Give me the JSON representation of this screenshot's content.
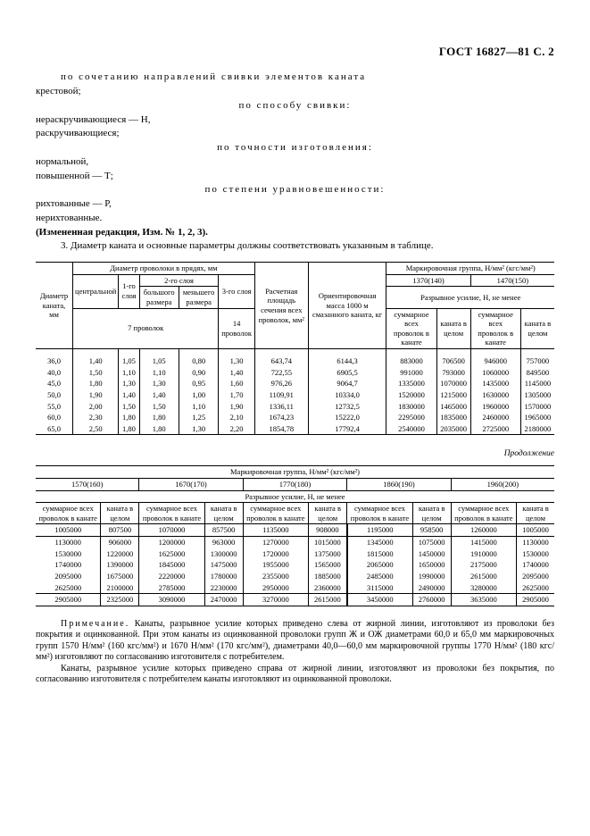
{
  "header": "ГОСТ 16827—81 С. 2",
  "text": {
    "line1": "по сочетанию направлений свивки элементов каната",
    "line2": "крестовой;",
    "line3": "по способу свивки:",
    "line4": "нераскручивающиеся — Н,",
    "line5": "раскручивающиеся;",
    "line6": "по точности изготовления:",
    "line7": "нормальной,",
    "line8": "повышенной — Т;",
    "line9": "по степени уравновешенности:",
    "line10": "рихтованные — Р,",
    "line11": "нерихтованные.",
    "line12": "(Измененная редакция, Изм. № 1, 2, 3).",
    "line13": "3. Диаметр каната и основные параметры должны соответствовать указанным в таблице."
  },
  "continuation": "Продолжение",
  "table1": {
    "headers": {
      "h1": "Диаметр каната, мм",
      "h2": "Диаметр проволоки в прядях, мм",
      "h3": "Расчетная площадь сечения всех проволок, мм²",
      "h4": "Ориентировочная масса 1000 м смазанного каната, кг",
      "h5": "Маркировочная группа, Н/мм² (кгс/мм²)",
      "s1": "центральной",
      "s2": "1-го слоя",
      "s3": "2-го слоя",
      "s4": "3-го слоя",
      "s5": "большого размера",
      "s6": "меньшего размера",
      "s7": "7 проволок",
      "s8": "14 проволок",
      "g1": "1370(140)",
      "g2": "1470(150)",
      "r1": "Разрывное усилие, Н, не менее",
      "c1": "суммарное всех проволок в канате",
      "c2": "каната в целом"
    },
    "rows": [
      [
        "36,0",
        "1,40",
        "1,05",
        "1,05",
        "0,80",
        "1,30",
        "643,74",
        "6144,3",
        "883000",
        "706500",
        "946000",
        "757000"
      ],
      [
        "40,0",
        "1,50",
        "1,10",
        "1,10",
        "0,90",
        "1,40",
        "722,55",
        "6905,5",
        "991000",
        "793000",
        "1060000",
        "849500"
      ],
      [
        "45,0",
        "1,80",
        "1,30",
        "1,30",
        "0,95",
        "1,60",
        "976,26",
        "9064,7",
        "1335000",
        "1070000",
        "1435000",
        "1145000"
      ],
      [
        "50,0",
        "1,90",
        "1,40",
        "1,40",
        "1,00",
        "1,70",
        "1109,91",
        "10334,0",
        "1520000",
        "1215000",
        "1630000",
        "1305000"
      ],
      [
        "55,0",
        "2,00",
        "1,50",
        "1,50",
        "1,10",
        "1,90",
        "1336,11",
        "12732,5",
        "1830000",
        "1465000",
        "1960000",
        "1570000"
      ],
      [
        "60,0",
        "2,30",
        "1,80",
        "1,80",
        "1,25",
        "2,10",
        "1674,23",
        "15222,0",
        "2295000",
        "1835000",
        "2460000",
        "1965000"
      ],
      [
        "65,0",
        "2,50",
        "1,80",
        "1,80",
        "1,30",
        "2,20",
        "1854,78",
        "17792,4",
        "2540000",
        "2035000",
        "2725000",
        "2180000"
      ]
    ]
  },
  "table2": {
    "headers": {
      "h1": "Маркировочная группа, Н/мм² (кгс/мм²)",
      "g1": "1570(160)",
      "g2": "1670(170)",
      "g3": "1770(180)",
      "g4": "1860(190)",
      "g5": "1960(200)",
      "r1": "Разрывное усилие, Н, не менее",
      "c1": "суммарное всех проволок в канате",
      "c2": "каната в целом"
    },
    "rows": [
      [
        "1005000",
        "807500",
        "1070000",
        "857500",
        "1135000",
        "908000",
        "1195000",
        "958500",
        "1260000",
        "1005000"
      ],
      [
        "1130000",
        "906000",
        "1200000",
        "963000",
        "1270000",
        "1015000",
        "1345000",
        "1075000",
        "1415000",
        "1130000"
      ],
      [
        "1530000",
        "1220000",
        "1625000",
        "1300000",
        "1720000",
        "1375000",
        "1815000",
        "1450000",
        "1910000",
        "1530000"
      ],
      [
        "1740000",
        "1390000",
        "1845000",
        "1475000",
        "1955000",
        "1565000",
        "2065000",
        "1650000",
        "2175000",
        "1740000"
      ],
      [
        "2095000",
        "1675000",
        "2220000",
        "1780000",
        "2355000",
        "1885000",
        "2485000",
        "1990000",
        "2615000",
        "2095000"
      ],
      [
        "2625000",
        "2100000",
        "2785000",
        "2230000",
        "2950000",
        "2360000",
        "3115000",
        "2490000",
        "3280000",
        "2625000"
      ],
      [
        "2905000",
        "2325000",
        "3090000",
        "2470000",
        "3270000",
        "2615000",
        "3450000",
        "2760000",
        "3635000",
        "2905000"
      ]
    ]
  },
  "note": {
    "label": "Примечание.",
    "p1": "Канаты, разрывное усилие которых приведено слева от жирной линии, изготовляют из проволоки без покрытия и оцинкованной. При этом канаты из оцинкованной проволоки групп Ж и ОЖ диаметрами 60,0 и 65,0 мм маркировочных групп 1570 Н/мм² (160 кгс/мм²) и 1670 Н/мм² (170 кгс/мм²), диаметрами 40,0—60,0 мм маркировочной группы 1770 Н/мм² (180 кгс/мм²) изготовляют по согласованию изготовителя с потребителем.",
    "p2": "Канаты, разрывное усилие которых приведено справа от жирной линии, изготовляют из проволоки без покрытия, по согласованию изготовителя с потребителем канаты изготовляют из оцинкованной проволоки."
  }
}
